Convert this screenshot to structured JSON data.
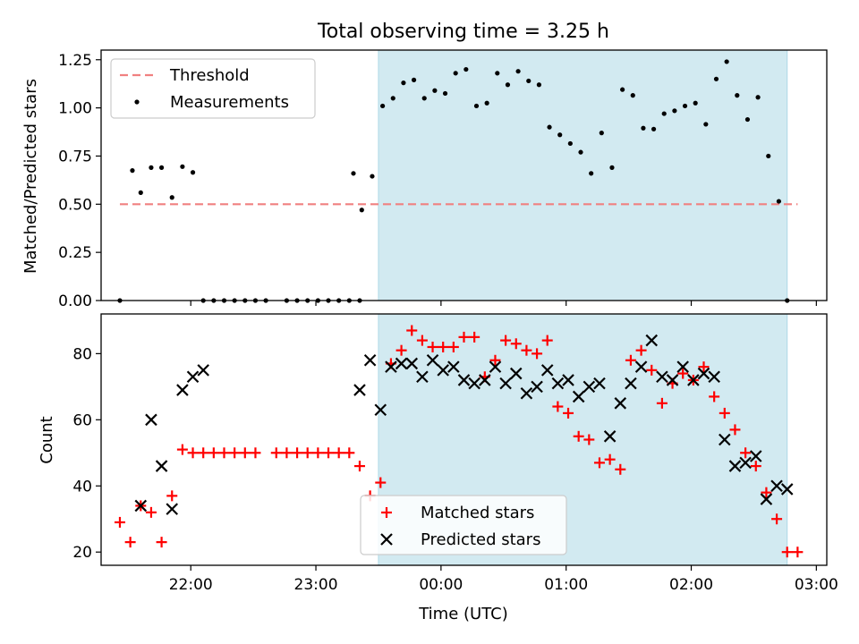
{
  "figure": {
    "title": "Total observing time = 3.25 h",
    "xlabel": "Time (UTC)",
    "shade_color": "#add8e6",
    "threshold_color": "#f08080",
    "matched_color": "#ff0000",
    "predicted_color": "#000000"
  },
  "chart_data": [
    {
      "type": "scatter",
      "ylabel": "Matched/Predicted stars",
      "xlim": [
        "21:17",
        "03:05"
      ],
      "ylim": [
        0,
        1.3
      ],
      "yticks": [
        "0.00",
        "0.25",
        "0.50",
        "0.75",
        "1.00",
        "1.25"
      ],
      "ytick_values": [
        0,
        0.25,
        0.5,
        0.75,
        1.0,
        1.25
      ],
      "shaded_span": [
        "23:30",
        "02:46"
      ],
      "legend": {
        "position": "upper-left",
        "threshold_label": "Threshold",
        "measurements_label": "Measurements"
      },
      "threshold": {
        "name": "Threshold",
        "y": 0.5,
        "x": [
          "21:26",
          "02:51"
        ]
      },
      "series": [
        {
          "name": "Measurements",
          "points": [
            [
              "21:26",
              0.0
            ],
            [
              "21:32",
              0.675
            ],
            [
              "21:36",
              0.56
            ],
            [
              "21:41",
              0.69
            ],
            [
              "21:46",
              0.69
            ],
            [
              "21:51",
              0.535
            ],
            [
              "21:56",
              0.695
            ],
            [
              "22:01",
              0.665
            ],
            [
              "22:06",
              0.0
            ],
            [
              "22:11",
              0.0
            ],
            [
              "22:16",
              0.0
            ],
            [
              "22:21",
              0.0
            ],
            [
              "22:26",
              0.0
            ],
            [
              "22:31",
              0.0
            ],
            [
              "22:36",
              0.0
            ],
            [
              "22:46",
              0.0
            ],
            [
              "22:51",
              0.0
            ],
            [
              "22:56",
              0.0
            ],
            [
              "23:01",
              0.0
            ],
            [
              "23:06",
              0.0
            ],
            [
              "23:11",
              0.0
            ],
            [
              "23:16",
              0.0
            ],
            [
              "23:21",
              0.0
            ],
            [
              "23:18",
              0.66
            ],
            [
              "23:22",
              0.47
            ],
            [
              "23:27",
              0.645
            ],
            [
              "23:32",
              1.01
            ],
            [
              "23:37",
              1.05
            ],
            [
              "23:42",
              1.13
            ],
            [
              "23:47",
              1.145
            ],
            [
              "23:52",
              1.05
            ],
            [
              "23:57",
              1.09
            ],
            [
              "00:02",
              1.075
            ],
            [
              "00:07",
              1.18
            ],
            [
              "00:12",
              1.2
            ],
            [
              "00:17",
              1.01
            ],
            [
              "00:22",
              1.025
            ],
            [
              "00:27",
              1.18
            ],
            [
              "00:32",
              1.12
            ],
            [
              "00:37",
              1.19
            ],
            [
              "00:42",
              1.14
            ],
            [
              "00:47",
              1.12
            ],
            [
              "00:52",
              0.9
            ],
            [
              "00:57",
              0.86
            ],
            [
              "01:02",
              0.815
            ],
            [
              "01:07",
              0.77
            ],
            [
              "01:12",
              0.66
            ],
            [
              "01:17",
              0.87
            ],
            [
              "01:22",
              0.69
            ],
            [
              "01:27",
              1.095
            ],
            [
              "01:32",
              1.065
            ],
            [
              "01:37",
              0.895
            ],
            [
              "01:42",
              0.89
            ],
            [
              "01:47",
              0.97
            ],
            [
              "01:52",
              0.985
            ],
            [
              "01:57",
              1.01
            ],
            [
              "02:02",
              1.025
            ],
            [
              "02:07",
              0.915
            ],
            [
              "02:12",
              1.15
            ],
            [
              "02:17",
              1.24
            ],
            [
              "02:22",
              1.065
            ],
            [
              "02:27",
              0.94
            ],
            [
              "02:32",
              1.055
            ],
            [
              "02:37",
              0.75
            ],
            [
              "02:42",
              0.515
            ],
            [
              "02:46",
              0.0
            ]
          ]
        }
      ]
    },
    {
      "type": "scatter",
      "ylabel": "Count",
      "xlabel": "Time (UTC)",
      "xlim": [
        "21:17",
        "03:05"
      ],
      "xticks": [
        "22:00",
        "23:00",
        "00:00",
        "01:00",
        "02:00",
        "03:00"
      ],
      "ylim": [
        16,
        92
      ],
      "yticks": [
        "20",
        "40",
        "60",
        "80"
      ],
      "ytick_values": [
        20,
        40,
        60,
        80
      ],
      "shaded_span": [
        "23:30",
        "02:46"
      ],
      "legend": {
        "position": "lower-center",
        "matched_label": "Matched stars",
        "predicted_label": "Predicted stars"
      },
      "series": [
        {
          "name": "Matched stars",
          "marker": "plus",
          "points": [
            [
              "21:26",
              29
            ],
            [
              "21:31",
              23
            ],
            [
              "21:36",
              34
            ],
            [
              "21:41",
              32
            ],
            [
              "21:46",
              23
            ],
            [
              "21:51",
              37
            ],
            [
              "21:56",
              51
            ],
            [
              "22:01",
              50
            ],
            [
              "22:06",
              50
            ],
            [
              "22:11",
              50
            ],
            [
              "22:16",
              50
            ],
            [
              "22:21",
              50
            ],
            [
              "22:26",
              50
            ],
            [
              "22:31",
              50
            ],
            [
              "22:41",
              50
            ],
            [
              "22:46",
              50
            ],
            [
              "22:51",
              50
            ],
            [
              "22:56",
              50
            ],
            [
              "23:01",
              50
            ],
            [
              "23:06",
              50
            ],
            [
              "23:11",
              50
            ],
            [
              "23:16",
              50
            ],
            [
              "23:21",
              46
            ],
            [
              "23:26",
              37
            ],
            [
              "23:31",
              41
            ],
            [
              "23:36",
              77
            ],
            [
              "23:41",
              81
            ],
            [
              "23:46",
              87
            ],
            [
              "23:51",
              84
            ],
            [
              "23:56",
              82
            ],
            [
              "00:01",
              82
            ],
            [
              "00:06",
              82
            ],
            [
              "00:11",
              85
            ],
            [
              "00:16",
              85
            ],
            [
              "00:21",
              73
            ],
            [
              "00:26",
              78
            ],
            [
              "00:31",
              84
            ],
            [
              "00:36",
              83
            ],
            [
              "00:41",
              81
            ],
            [
              "00:46",
              80
            ],
            [
              "00:51",
              84
            ],
            [
              "00:56",
              64
            ],
            [
              "01:01",
              62
            ],
            [
              "01:06",
              55
            ],
            [
              "01:11",
              54
            ],
            [
              "01:16",
              47
            ],
            [
              "01:21",
              48
            ],
            [
              "01:26",
              45
            ],
            [
              "01:31",
              78
            ],
            [
              "01:36",
              81
            ],
            [
              "01:41",
              75
            ],
            [
              "01:46",
              65
            ],
            [
              "01:51",
              71
            ],
            [
              "01:56",
              74
            ],
            [
              "02:01",
              72
            ],
            [
              "02:06",
              76
            ],
            [
              "02:11",
              67
            ],
            [
              "02:16",
              62
            ],
            [
              "02:21",
              57
            ],
            [
              "02:26",
              50
            ],
            [
              "02:31",
              46
            ],
            [
              "02:36",
              38
            ],
            [
              "02:41",
              30
            ],
            [
              "02:46",
              20
            ],
            [
              "02:51",
              20
            ]
          ]
        },
        {
          "name": "Predicted stars",
          "marker": "x",
          "points": [
            [
              "21:36",
              34
            ],
            [
              "21:41",
              60
            ],
            [
              "21:46",
              46
            ],
            [
              "21:51",
              33
            ],
            [
              "21:56",
              69
            ],
            [
              "22:01",
              73
            ],
            [
              "22:06",
              75
            ],
            [
              "23:21",
              69
            ],
            [
              "23:26",
              78
            ],
            [
              "23:31",
              63
            ],
            [
              "23:36",
              76
            ],
            [
              "23:41",
              77
            ],
            [
              "23:46",
              77
            ],
            [
              "23:51",
              73
            ],
            [
              "23:56",
              78
            ],
            [
              "00:01",
              75
            ],
            [
              "00:06",
              76
            ],
            [
              "00:11",
              72
            ],
            [
              "00:16",
              71
            ],
            [
              "00:21",
              72
            ],
            [
              "00:26",
              76
            ],
            [
              "00:31",
              71
            ],
            [
              "00:36",
              74
            ],
            [
              "00:41",
              68
            ],
            [
              "00:46",
              70
            ],
            [
              "00:51",
              75
            ],
            [
              "00:56",
              71
            ],
            [
              "01:01",
              72
            ],
            [
              "01:06",
              67
            ],
            [
              "01:11",
              70
            ],
            [
              "01:16",
              71
            ],
            [
              "01:21",
              55
            ],
            [
              "01:26",
              65
            ],
            [
              "01:31",
              71
            ],
            [
              "01:36",
              76
            ],
            [
              "01:41",
              84
            ],
            [
              "01:46",
              73
            ],
            [
              "01:51",
              72
            ],
            [
              "01:56",
              76
            ],
            [
              "02:01",
              72
            ],
            [
              "02:06",
              74
            ],
            [
              "02:11",
              73
            ],
            [
              "02:16",
              54
            ],
            [
              "02:21",
              46
            ],
            [
              "02:26",
              47
            ],
            [
              "02:31",
              49
            ],
            [
              "02:36",
              36
            ],
            [
              "02:41",
              40
            ],
            [
              "02:46",
              39
            ]
          ]
        }
      ]
    }
  ]
}
